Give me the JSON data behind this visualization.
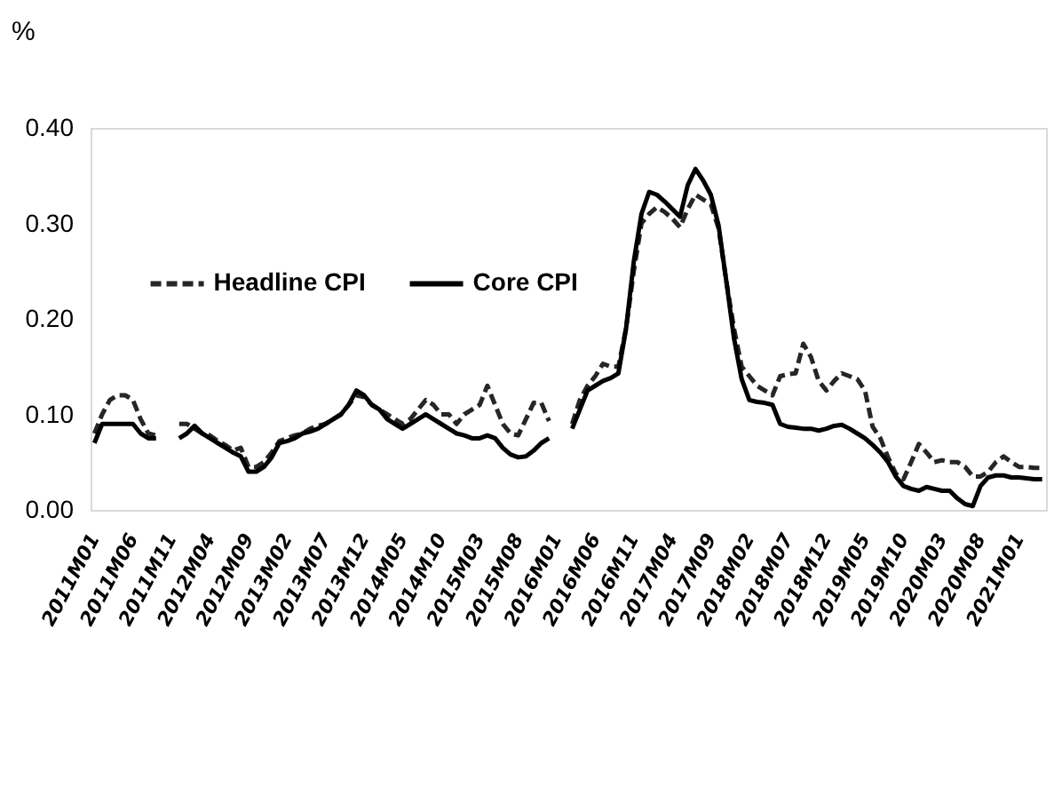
{
  "chart_data": {
    "type": "line",
    "ylabel": "%",
    "categories": [
      "2011M01",
      null,
      null,
      null,
      null,
      "2011M06",
      null,
      null,
      null,
      null,
      "2011M11",
      null,
      null,
      null,
      null,
      "2012M04",
      null,
      null,
      null,
      null,
      "2012M09",
      null,
      null,
      null,
      null,
      "2013M02",
      null,
      null,
      null,
      null,
      "2013M07",
      null,
      null,
      null,
      null,
      "2013M12",
      null,
      null,
      null,
      null,
      "2014M05",
      null,
      null,
      null,
      null,
      "2014M10",
      null,
      null,
      null,
      null,
      "2015M03",
      null,
      null,
      null,
      null,
      "2015M08",
      null,
      null,
      null,
      null,
      "2016M01",
      null,
      null,
      null,
      null,
      "2016M06",
      null,
      null,
      null,
      null,
      "2016M11",
      null,
      null,
      null,
      null,
      "2017M04",
      null,
      null,
      null,
      null,
      "2017M09",
      null,
      null,
      null,
      null,
      "2018M02",
      null,
      null,
      null,
      null,
      "2018M07",
      null,
      null,
      null,
      null,
      "2018M12",
      null,
      null,
      null,
      null,
      "2019M05",
      null,
      null,
      null,
      null,
      "2019M10",
      null,
      null,
      null,
      null,
      "2020M03",
      null,
      null,
      null,
      null,
      "2020M08",
      null,
      null,
      null,
      null,
      "2021M01",
      null,
      null,
      null
    ],
    "series": [
      {
        "name": "Headline CPI",
        "color": "#262626",
        "line_style": "dashed",
        "values": [
          0.08,
          0.1,
          0.115,
          0.12,
          0.12,
          0.115,
          0.095,
          0.08,
          0.078,
          null,
          null,
          0.09,
          0.09,
          0.085,
          0.08,
          0.078,
          0.072,
          0.068,
          0.062,
          0.065,
          0.045,
          0.045,
          0.05,
          0.06,
          0.072,
          0.075,
          0.078,
          0.08,
          0.085,
          0.088,
          0.09,
          0.095,
          0.1,
          0.11,
          0.12,
          0.118,
          0.11,
          0.105,
          0.1,
          0.095,
          0.09,
          0.095,
          0.105,
          0.115,
          0.11,
          0.1,
          0.1,
          0.09,
          0.1,
          0.105,
          0.11,
          0.13,
          0.11,
          0.09,
          0.08,
          0.078,
          0.095,
          0.112,
          0.112,
          0.093,
          null,
          null,
          0.09,
          0.115,
          0.13,
          0.14,
          0.153,
          0.15,
          0.15,
          0.19,
          0.25,
          0.3,
          0.31,
          0.317,
          0.312,
          0.305,
          0.296,
          0.315,
          0.33,
          0.325,
          0.32,
          0.295,
          0.24,
          0.19,
          0.15,
          0.14,
          0.13,
          0.125,
          0.12,
          0.14,
          0.142,
          0.143,
          0.174,
          0.16,
          0.135,
          0.125,
          0.135,
          0.143,
          0.14,
          0.137,
          0.125,
          0.087,
          0.075,
          0.055,
          0.038,
          0.032,
          0.05,
          0.069,
          0.06,
          0.05,
          0.052,
          0.05,
          0.05,
          0.045,
          0.035,
          0.035,
          0.04,
          0.05,
          0.056,
          0.05,
          0.045,
          0.045,
          0.044,
          0.044
        ]
      },
      {
        "name": "Core CPI",
        "color": "#000000",
        "line_style": "solid",
        "values": [
          0.07,
          0.09,
          0.09,
          0.09,
          0.09,
          0.09,
          0.08,
          0.075,
          0.075,
          null,
          null,
          0.075,
          0.08,
          0.088,
          0.08,
          0.075,
          0.07,
          0.065,
          0.06,
          0.056,
          0.04,
          0.04,
          0.045,
          0.055,
          0.07,
          0.072,
          0.075,
          0.08,
          0.082,
          0.085,
          0.09,
          0.095,
          0.1,
          0.11,
          0.125,
          0.12,
          0.11,
          0.105,
          0.095,
          0.09,
          0.085,
          0.09,
          0.095,
          0.1,
          0.095,
          0.09,
          0.085,
          0.08,
          0.078,
          0.075,
          0.075,
          0.078,
          0.075,
          0.065,
          0.058,
          0.055,
          0.056,
          0.062,
          0.07,
          0.075,
          null,
          null,
          0.085,
          0.105,
          0.125,
          0.13,
          0.135,
          0.138,
          0.143,
          0.19,
          0.26,
          0.31,
          0.333,
          0.33,
          0.323,
          0.315,
          0.307,
          0.34,
          0.357,
          0.345,
          0.33,
          0.298,
          0.24,
          0.18,
          0.137,
          0.115,
          0.113,
          0.112,
          0.11,
          0.09,
          0.087,
          0.086,
          0.085,
          0.085,
          0.083,
          0.085,
          0.088,
          0.089,
          0.085,
          0.08,
          0.075,
          0.068,
          0.06,
          0.05,
          0.035,
          0.025,
          0.022,
          0.02,
          0.024,
          0.022,
          0.02,
          0.02,
          0.012,
          0.006,
          0.004,
          0.025,
          0.034,
          0.036,
          0.036,
          0.034,
          0.034,
          0.033,
          0.032,
          0.032
        ]
      }
    ],
    "ylim": [
      0,
      0.4
    ],
    "yticks": [
      {
        "value": 0,
        "label": "0.00"
      },
      {
        "value": 0.1,
        "label": "0.10"
      },
      {
        "value": 0.2,
        "label": "0.20"
      },
      {
        "value": 0.3,
        "label": "0.30"
      },
      {
        "value": 0.4,
        "label": "0.40"
      }
    ],
    "legend": "top left",
    "grid": false
  }
}
